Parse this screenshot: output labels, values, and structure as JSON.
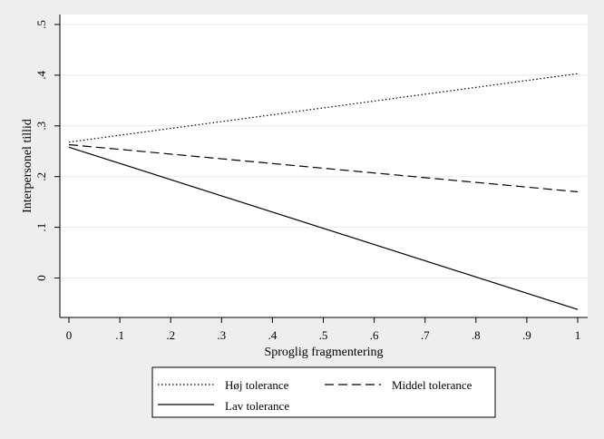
{
  "chart_data": {
    "type": "line",
    "xlabel": "Sproglig fragmentering",
    "ylabel": "Interpersonel tillid",
    "xlim": [
      0,
      1
    ],
    "ylim": [
      -0.05,
      0.52
    ],
    "xticks": [
      0,
      0.1,
      0.2,
      0.3,
      0.4,
      0.5,
      0.6,
      0.7,
      0.8,
      0.9,
      1
    ],
    "xtick_labels": [
      "0",
      ".1",
      ".2",
      ".3",
      ".4",
      ".5",
      ".6",
      ".7",
      ".8",
      ".9",
      "1"
    ],
    "yticks": [
      0,
      0.1,
      0.2,
      0.3,
      0.4,
      0.5
    ],
    "ytick_labels": [
      "0",
      ".1",
      ".2",
      ".3",
      ".4",
      ".5"
    ],
    "grid": true,
    "legend_position": "bottom",
    "series": [
      {
        "name": "Høj tolerance",
        "style": "dotted",
        "x": [
          0,
          1
        ],
        "y": [
          0.268,
          0.403
        ]
      },
      {
        "name": "Middel tolerance",
        "style": "dashed",
        "x": [
          0,
          1
        ],
        "y": [
          0.263,
          0.17
        ]
      },
      {
        "name": "Lav tolerance",
        "style": "solid",
        "x": [
          0,
          1
        ],
        "y": [
          0.258,
          -0.062
        ]
      }
    ],
    "colors": {
      "background": "#eeeeee",
      "plot_area": "#ffffff",
      "grid": "#e8e8e8",
      "line": "#000000"
    }
  }
}
